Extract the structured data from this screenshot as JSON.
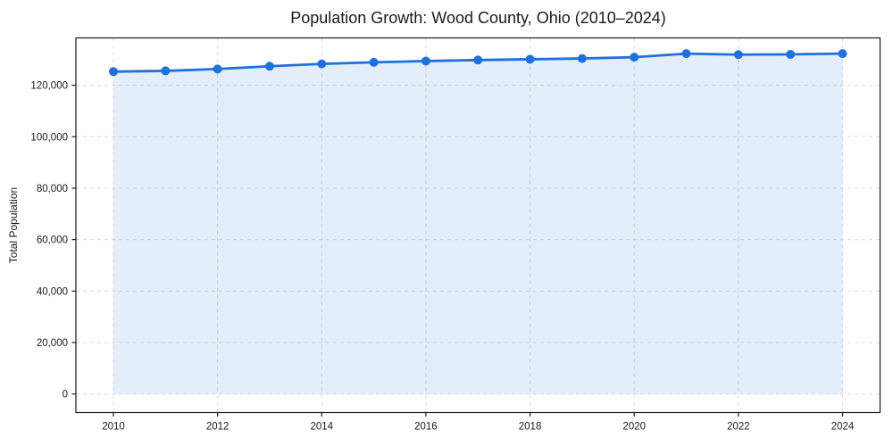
{
  "page": {
    "background": "#ffffff"
  },
  "chart_data": {
    "type": "area",
    "title": "Population Growth: Wood County, Ohio (2010–2024)",
    "xlabel": "",
    "ylabel": "Total Population",
    "series_name": "Total Population",
    "x": [
      2010,
      2011,
      2012,
      2013,
      2014,
      2015,
      2016,
      2017,
      2018,
      2019,
      2020,
      2021,
      2022,
      2023,
      2024
    ],
    "values": [
      125300,
      125600,
      126300,
      127400,
      128300,
      128900,
      129400,
      129800,
      130100,
      130400,
      130900,
      132300,
      131900,
      132000,
      132300
    ],
    "xlim": [
      2009.28,
      2024.72
    ],
    "ylim": [
      -7200,
      138400
    ],
    "xticks": {
      "values": [
        2010,
        2012,
        2014,
        2016,
        2018,
        2020,
        2022,
        2024
      ],
      "labels": [
        "2010",
        "2012",
        "2014",
        "2016",
        "2018",
        "2020",
        "2022",
        "2024"
      ]
    },
    "yticks": {
      "values": [
        0,
        20000,
        40000,
        60000,
        80000,
        100000,
        120000
      ],
      "labels": [
        "0",
        "20,000",
        "40,000",
        "60,000",
        "80,000",
        "100,000",
        "120,000"
      ]
    },
    "grid": true,
    "grid_style": "dashed",
    "legend": "none",
    "marker": "circle",
    "colors": {
      "line": "#2070dd",
      "marker": "#2070dd",
      "fill": "rgba(32, 112, 221, 0.12)",
      "grid": "#dcdcdc",
      "spine": "#1a1a1a",
      "text": "#1a1a1a"
    }
  }
}
